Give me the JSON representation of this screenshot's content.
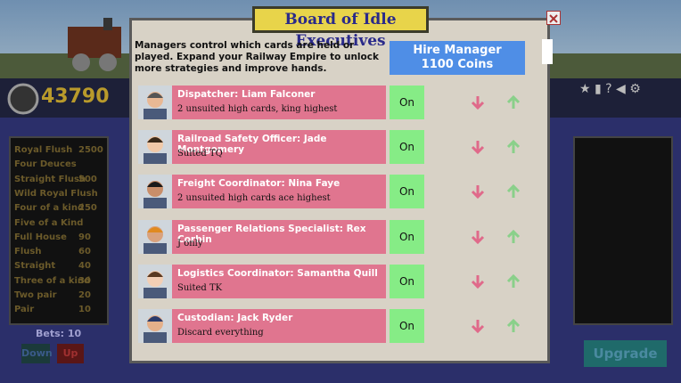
{
  "header": {
    "coins": "43790"
  },
  "paytable": [
    {
      "hand": "Royal Flush",
      "payout": "2500"
    },
    {
      "hand": "Four Deuces"
    },
    {
      "hand": "Straight Flush",
      "payout": "500"
    },
    {
      "hand": "Wild Royal Flush"
    },
    {
      "hand": "Four of a kind",
      "payout": "250"
    },
    {
      "hand": "Five of a Kind"
    },
    {
      "hand": "Full House",
      "payout": "90"
    },
    {
      "hand": "Flush",
      "payout": "60"
    },
    {
      "hand": "Straight",
      "payout": "40"
    },
    {
      "hand": "Three of a kind",
      "payout": "30"
    },
    {
      "hand": "Two pair",
      "payout": "20"
    },
    {
      "hand": "Pair",
      "payout": "10"
    }
  ],
  "bets": {
    "label": "Bets: 10",
    "down": "Down",
    "up": "Up"
  },
  "upgrade": "Upgrade",
  "modal": {
    "title": "Board of Idle Executives",
    "description": "Managers control which cards are held or played. Expand your Railway Empire to unlock more strategies and improve hands.",
    "hire_button": {
      "line1": "Hire Manager",
      "line2": "1100 Coins"
    },
    "managers": [
      {
        "name": "Dispatcher: Liam Falconer",
        "strategy": "2 unsuited high cards, king highest",
        "toggle": "On"
      },
      {
        "name": "Railroad Safety Officer: Jade Montgomery",
        "strategy": "Suited TQ",
        "toggle": "On"
      },
      {
        "name": "Freight Coordinator: Nina Faye",
        "strategy": "2 unsuited high cards ace highest",
        "toggle": "On"
      },
      {
        "name": "Passenger Relations Specialist: Rex Corbin",
        "strategy": "J only",
        "toggle": "On"
      },
      {
        "name": "Logistics Coordinator: Samantha Quill",
        "strategy": "Suited TK",
        "toggle": "On"
      },
      {
        "name": "Custodian: Jack Ryder",
        "strategy": "Discard everything",
        "toggle": "On"
      }
    ]
  }
}
